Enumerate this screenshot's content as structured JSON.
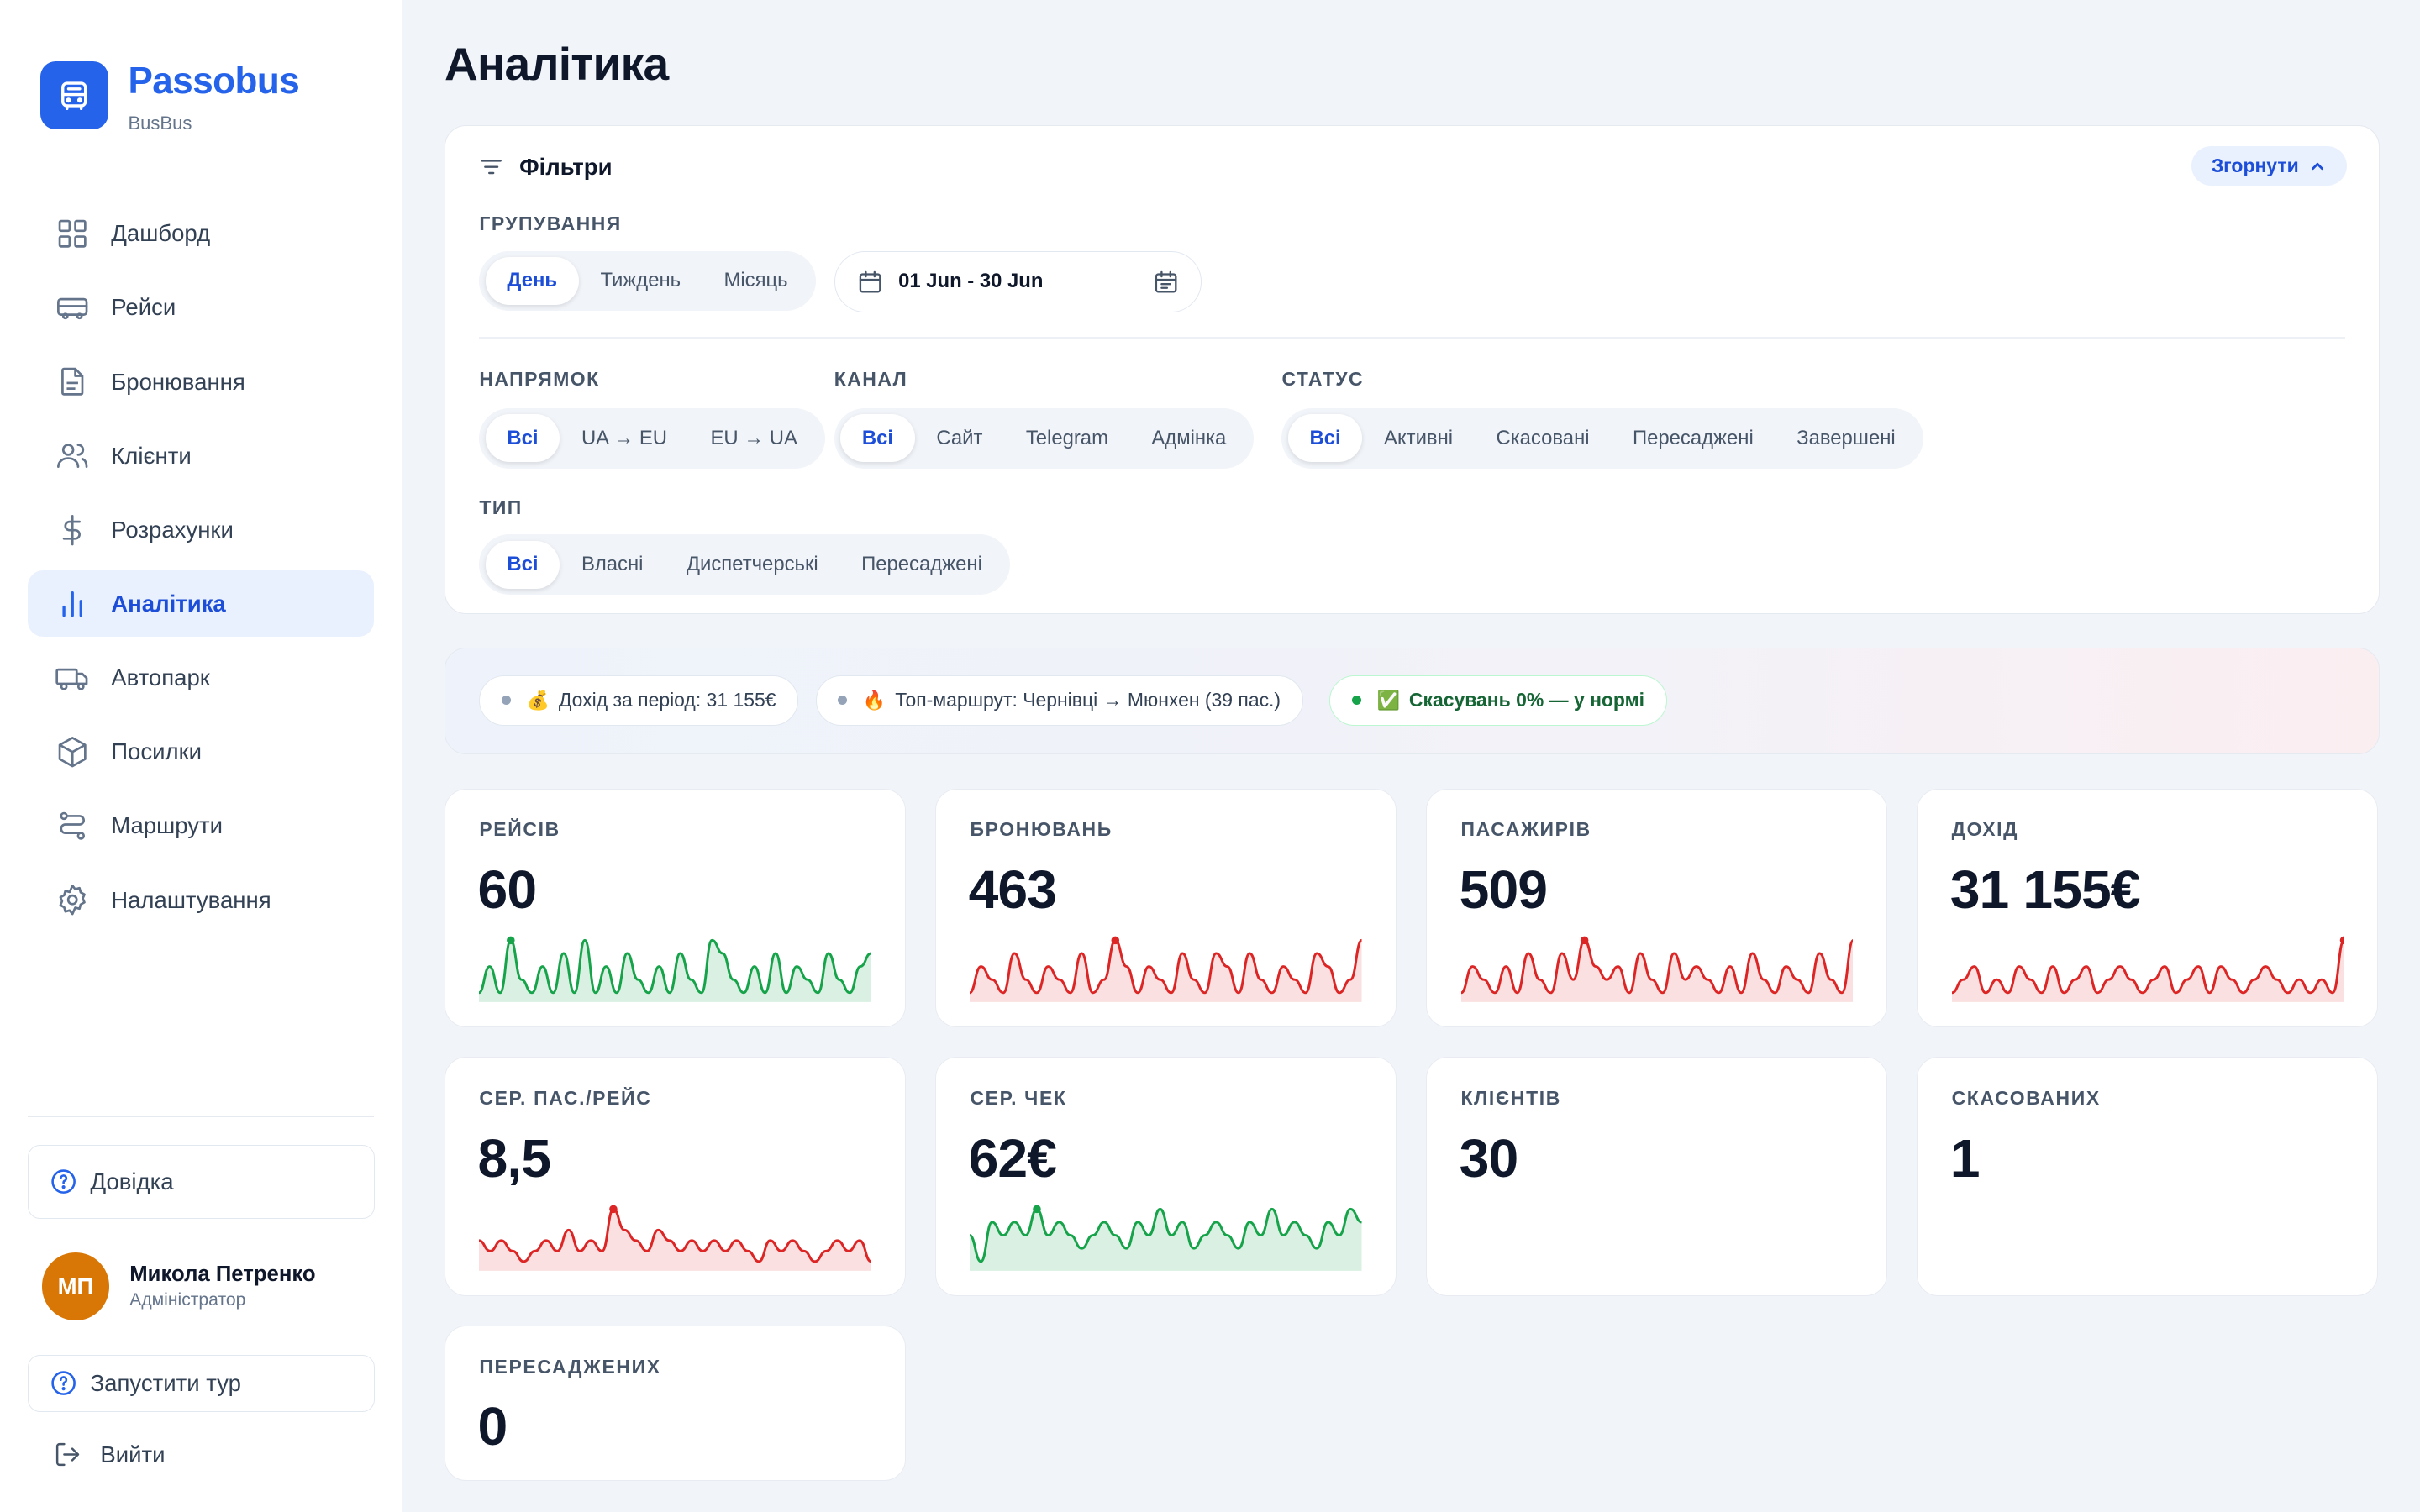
{
  "sidebar": {
    "brand_name": "Passobus",
    "brand_sub": "BusBus",
    "items": [
      {
        "label": "Дашборд",
        "icon": "dashboard-grid-icon"
      },
      {
        "label": "Рейси",
        "icon": "bus-icon"
      },
      {
        "label": "Бронювання",
        "icon": "document-icon"
      },
      {
        "label": "Клієнти",
        "icon": "users-icon"
      },
      {
        "label": "Розрахунки",
        "icon": "dollar-icon"
      },
      {
        "label": "Аналітика",
        "icon": "bar-chart-icon",
        "active": true
      },
      {
        "label": "Автопарк",
        "icon": "truck-icon"
      },
      {
        "label": "Посилки",
        "icon": "package-icon"
      },
      {
        "label": "Маршрути",
        "icon": "route-icon"
      },
      {
        "label": "Налаштування",
        "icon": "gear-icon"
      }
    ],
    "help_label": "Довідка",
    "user": {
      "initials": "МП",
      "name": "Микола Петренко",
      "role": "Адміністратор"
    },
    "tour_label": "Запустити тур",
    "logout_label": "Вийти"
  },
  "page": {
    "title": "Аналітика"
  },
  "filters": {
    "title": "Фільтри",
    "collapse_label": "Згорнути",
    "grouping": {
      "label": "ГРУПУВАННЯ",
      "options": [
        "День",
        "Тиждень",
        "Місяць"
      ],
      "selected": "День"
    },
    "date_range": "01 Jun - 30 Jun",
    "direction": {
      "label": "НАПРЯМОК",
      "options": [
        "Всі",
        "UA → EU",
        "EU → UA"
      ],
      "selected": "Всі"
    },
    "channel": {
      "label": "КАНАЛ",
      "options": [
        "Всі",
        "Сайт",
        "Telegram",
        "Адмінка"
      ],
      "selected": "Всі"
    },
    "status": {
      "label": "СТАТУС",
      "options": [
        "Всі",
        "Активні",
        "Скасовані",
        "Пересаджені",
        "Завершені"
      ],
      "selected": "Всі"
    },
    "type": {
      "label": "ТИП",
      "options": [
        "Всі",
        "Власні",
        "Диспетчерські",
        "Пересаджені"
      ],
      "selected": "Всі"
    }
  },
  "insights": [
    {
      "emoji": "💰",
      "text": "Дохід за період: 31 155€"
    },
    {
      "emoji": "🔥",
      "text": "Топ-маршрут: Чернівці → Мюнхен (39 пас.)"
    },
    {
      "emoji": "✅",
      "text": "Скасувань 0% — у нормі",
      "status": "ok"
    }
  ],
  "colors": {
    "accent": "#2563eb",
    "up": "#16a34a",
    "down": "#dc2626"
  },
  "kpis": [
    {
      "label": "РЕЙСІВ",
      "value": "60",
      "trend": "up",
      "spark": [
        1,
        3,
        1,
        5,
        2,
        1,
        3,
        1,
        4,
        1,
        5,
        1,
        3,
        1,
        4,
        2,
        1,
        3,
        1,
        4,
        2,
        1,
        5,
        4,
        2,
        1,
        3,
        1,
        4,
        1,
        3,
        2,
        1,
        4,
        2,
        1,
        3,
        4
      ]
    },
    {
      "label": "БРОНЮВАНЬ",
      "value": "463",
      "trend": "down",
      "spark": [
        1,
        3,
        2,
        1,
        4,
        2,
        1,
        3,
        2,
        1,
        4,
        1,
        2,
        5,
        3,
        1,
        3,
        2,
        1,
        4,
        2,
        1,
        4,
        3,
        1,
        4,
        2,
        1,
        3,
        2,
        1,
        4,
        3,
        1,
        2,
        5
      ]
    },
    {
      "label": "ПАСАЖИРІВ",
      "value": "509",
      "trend": "down",
      "spark": [
        1,
        3,
        2,
        1,
        3,
        1,
        4,
        2,
        1,
        4,
        2,
        5,
        3,
        2,
        3,
        1,
        4,
        2,
        1,
        4,
        2,
        3,
        2,
        1,
        3,
        1,
        4,
        2,
        1,
        3,
        2,
        1,
        4,
        2,
        1,
        5
      ]
    },
    {
      "label": "ДОХІД",
      "value": "31 155€",
      "trend": "down",
      "spark": [
        1,
        2,
        3,
        1,
        2,
        1,
        3,
        2,
        1,
        3,
        1,
        2,
        3,
        1,
        2,
        3,
        2,
        1,
        2,
        3,
        1,
        2,
        3,
        1,
        3,
        2,
        1,
        2,
        3,
        2,
        1,
        2,
        1,
        2,
        1,
        5
      ]
    },
    {
      "label": "СЕР. ПАС./РЕЙС",
      "value": "8,5",
      "trend": "down",
      "spark": [
        3,
        2,
        3,
        2,
        1,
        2,
        3,
        2,
        4,
        2,
        3,
        2,
        6,
        4,
        3,
        2,
        4,
        3,
        2,
        3,
        2,
        3,
        2,
        3,
        2,
        1,
        3,
        2,
        3,
        2,
        1,
        2,
        3,
        2,
        3,
        1
      ]
    },
    {
      "label": "СЕР. ЧЕК",
      "value": "62€",
      "trend": "up",
      "spark": [
        3,
        1,
        4,
        3,
        4,
        3,
        5,
        3,
        4,
        3,
        2,
        3,
        4,
        3,
        2,
        4,
        3,
        5,
        3,
        4,
        2,
        3,
        4,
        3,
        2,
        4,
        3,
        5,
        3,
        4,
        3,
        2,
        4,
        3,
        5,
        4
      ]
    },
    {
      "label": "КЛІЄНТІВ",
      "value": "30"
    },
    {
      "label": "СКАСОВАНИХ",
      "value": "1"
    },
    {
      "label": "ПЕРЕСАДЖЕНИХ",
      "value": "0"
    }
  ]
}
